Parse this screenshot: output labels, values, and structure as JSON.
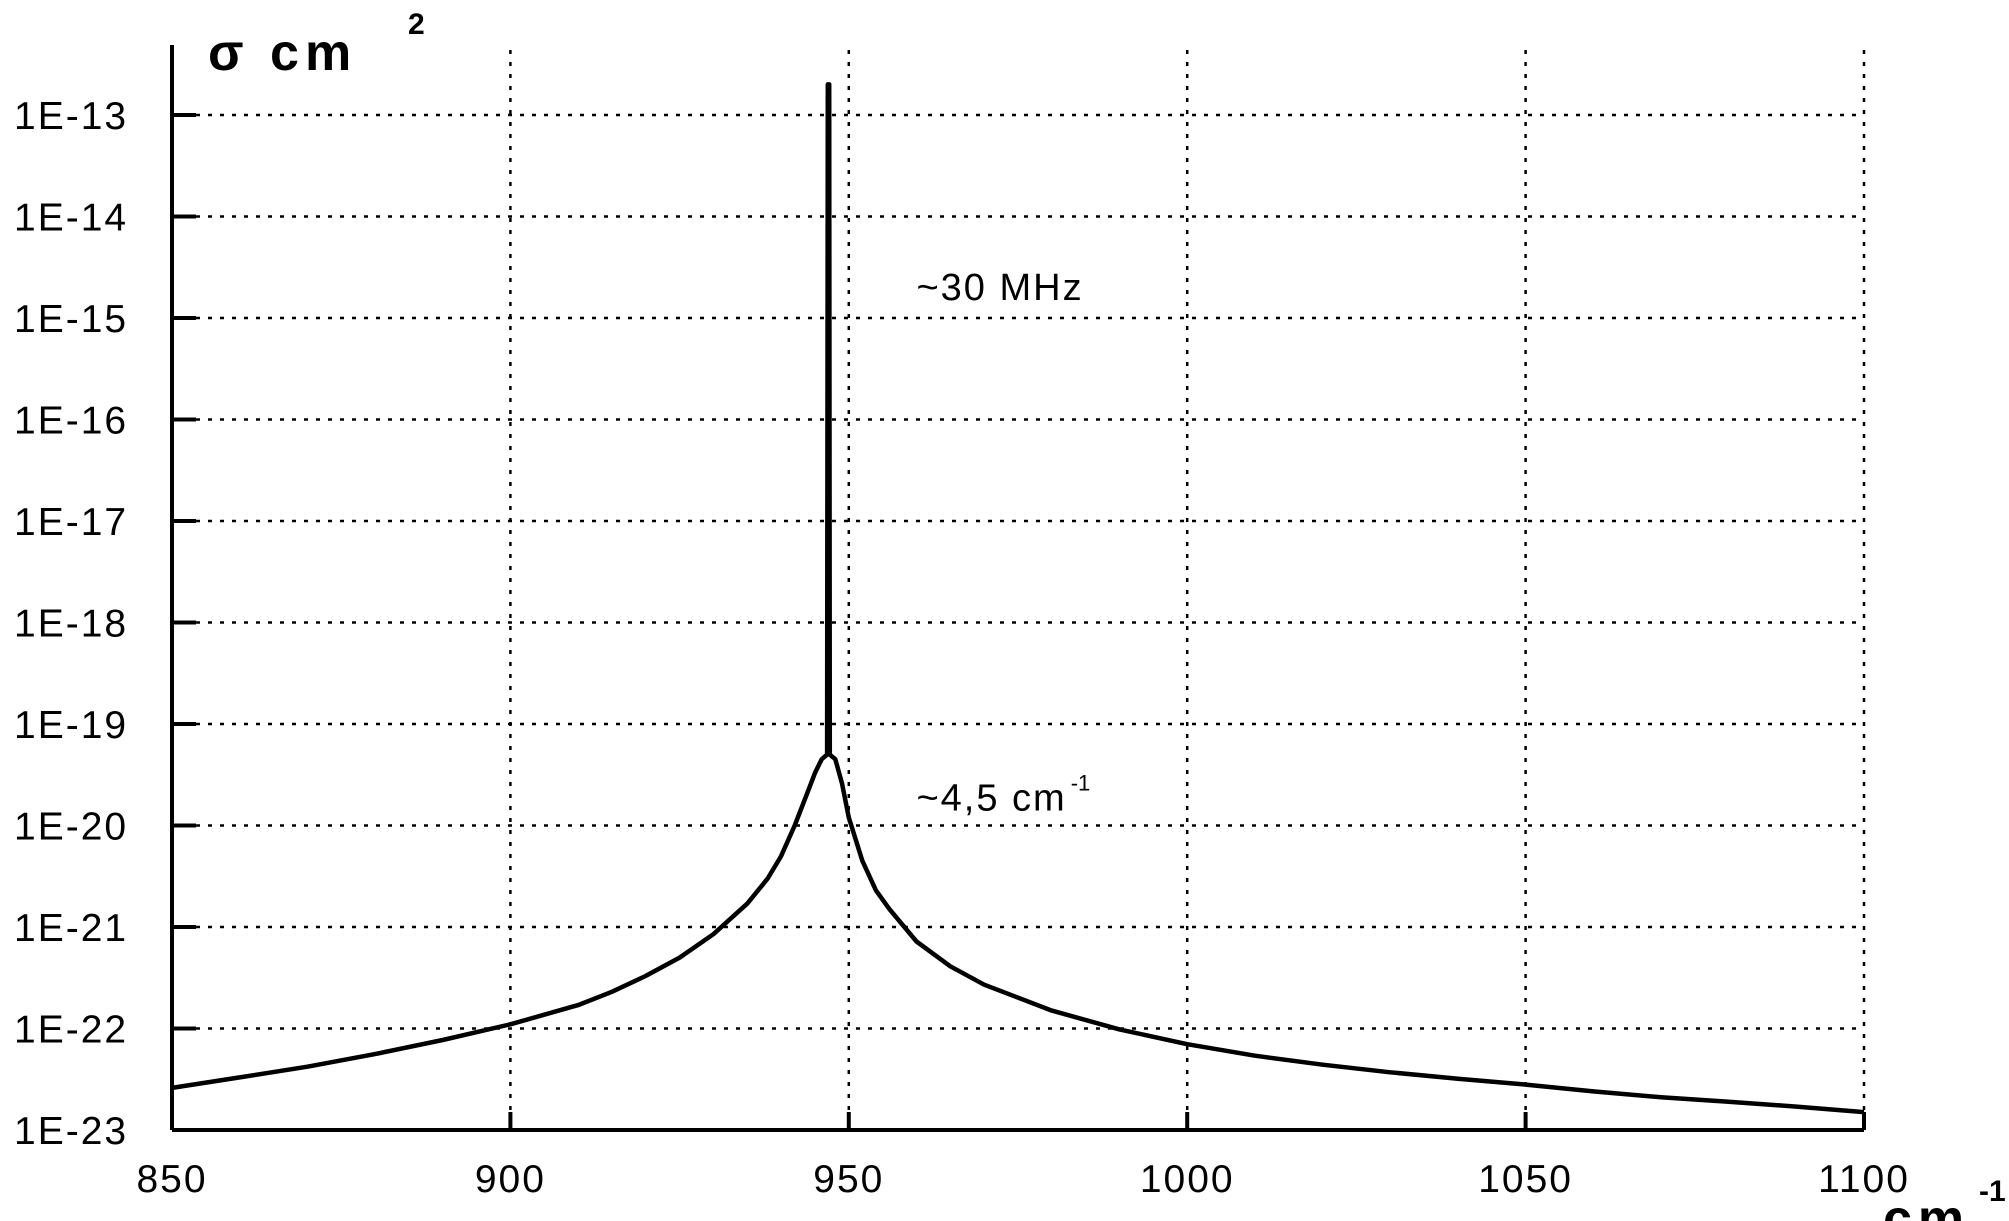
{
  "chart_data": {
    "type": "line",
    "title": "",
    "ylabel": {
      "main": "σ   cm",
      "sup": "2"
    },
    "xlabel": {
      "main": "cm",
      "sup": "-1"
    },
    "xlim": [
      850,
      1100
    ],
    "ylim": [
      1e-23,
      1e-13
    ],
    "yscale": "log",
    "grid": true,
    "x_ticks": [
      850,
      900,
      950,
      1000,
      1050,
      1100
    ],
    "x_tick_labels": [
      "850",
      "900",
      "950",
      "1000",
      "1050",
      "1100"
    ],
    "y_ticks": [
      1e-23,
      1e-22,
      1e-21,
      1e-20,
      1e-19,
      1e-18,
      1e-17,
      1e-16,
      1e-15,
      1e-14,
      1e-13
    ],
    "y_tick_labels": [
      "1E-23",
      "1E-22",
      "1E-21",
      "1E-20",
      "1E-19",
      "1E-18",
      "1E-17",
      "1E-16",
      "1E-15",
      "1E-14",
      "1E-13"
    ],
    "series": [
      {
        "x": [
          850,
          860,
          870,
          880,
          890,
          900,
          910,
          915,
          920,
          925,
          930,
          935,
          938,
          940,
          942,
          944,
          945,
          946,
          946.8,
          946.9,
          947,
          947.1,
          947.2,
          948,
          949,
          950,
          952,
          954,
          956,
          960,
          965,
          970,
          980,
          990,
          1000,
          1010,
          1020,
          1030,
          1040,
          1050,
          1060,
          1070,
          1080,
          1090,
          1100
        ],
        "y": [
          2.6e-23,
          3.3e-23,
          4.2e-23,
          5.6e-23,
          7.7e-23,
          1.1e-22,
          1.7e-22,
          2.3e-22,
          3.3e-22,
          5e-22,
          8.5e-22,
          1.7e-21,
          3e-21,
          5e-21,
          1e-20,
          2.2e-20,
          3.3e-20,
          4.5e-20,
          5e-20,
          2e-13,
          2e-13,
          2e-13,
          5e-20,
          4.5e-20,
          2.6e-20,
          1.2e-20,
          4.5e-21,
          2.3e-21,
          1.5e-21,
          7.2e-22,
          4.1e-22,
          2.7e-22,
          1.5e-22,
          9.8e-23,
          7e-23,
          5.4e-23,
          4.4e-23,
          3.7e-23,
          3.2e-23,
          2.8e-23,
          2.4e-23,
          2.1e-23,
          1.9e-23,
          1.7e-23,
          1.5e-23
        ]
      }
    ],
    "annotations": [
      {
        "text": "~30 MHz",
        "sup": "",
        "x": 960,
        "y": 1.5e-15
      },
      {
        "text": "~4,5 cm",
        "sup": "-1",
        "x": 960,
        "y": 1.4e-20
      }
    ]
  }
}
